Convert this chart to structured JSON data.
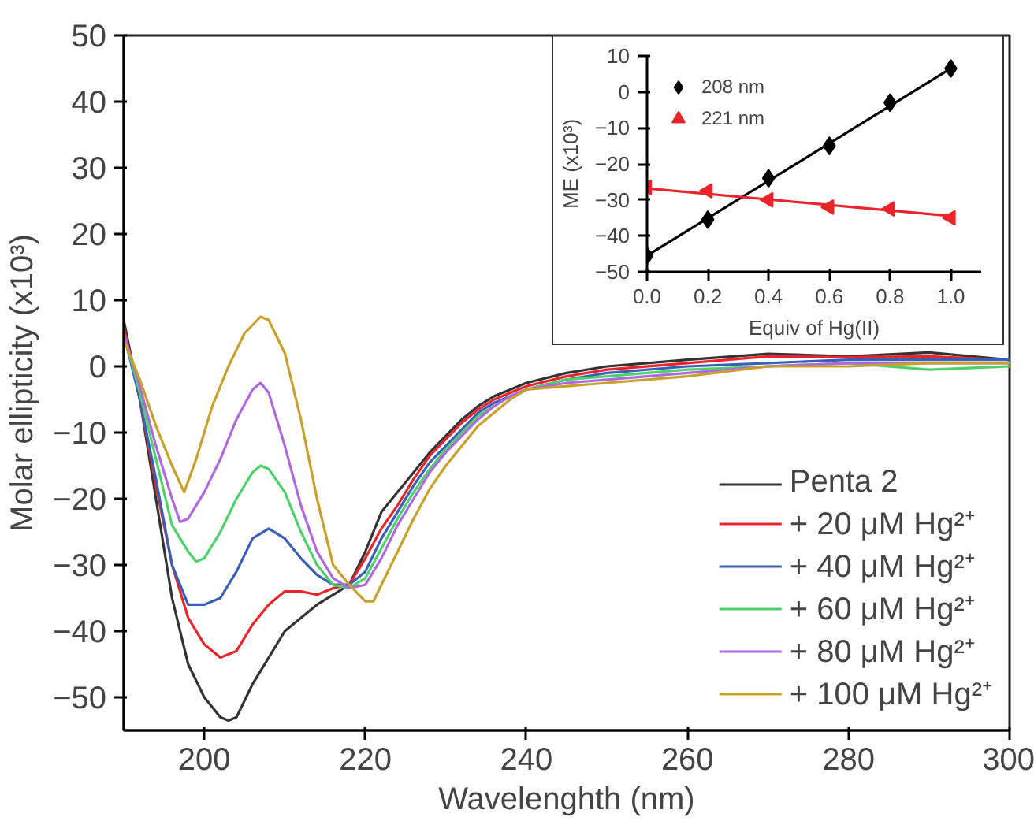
{
  "chart_data": [
    {
      "type": "line",
      "xlabel": "Wavelenghth (nm)",
      "ylabel": "Molar ellipticity (x10³)",
      "xlim": [
        190,
        300
      ],
      "ylim": [
        -55,
        50
      ],
      "xticks": [
        200,
        220,
        240,
        260,
        280,
        300
      ],
      "yticks": [
        -50,
        -40,
        -30,
        -20,
        -10,
        0,
        10,
        20,
        30,
        40,
        50
      ],
      "grid": false,
      "legend": "bottom right",
      "line_style": "solid",
      "marker": "none",
      "series": [
        {
          "name": "Penta 2",
          "color": "#333333",
          "x": [
            190,
            192,
            194,
            196,
            198,
            200,
            202,
            203,
            204,
            206,
            208,
            210,
            212,
            214,
            216,
            218,
            220,
            222,
            224,
            226,
            228,
            230,
            232,
            234,
            236,
            238,
            240,
            245,
            250,
            255,
            260,
            270,
            280,
            290,
            300
          ],
          "values": [
            7,
            -5,
            -20,
            -35,
            -45,
            -50,
            -53,
            -53.5,
            -53,
            -48,
            -44,
            -40,
            -38,
            -36,
            -34.5,
            -33,
            -28,
            -22,
            -19,
            -16,
            -13,
            -10.5,
            -8,
            -6,
            -4.5,
            -3.5,
            -2.5,
            -1,
            0,
            0.5,
            1,
            1.9,
            1.5,
            2.1,
            1
          ]
        },
        {
          "name": "+ 20 μM Hg²⁺",
          "color": "#e8252a",
          "x": [
            190,
            192,
            194,
            196,
            198,
            200,
            202,
            204,
            206,
            208,
            210,
            212,
            214,
            216,
            218,
            220,
            222,
            224,
            226,
            228,
            230,
            232,
            234,
            236,
            238,
            240,
            245,
            250,
            260,
            270,
            280,
            290,
            300
          ],
          "values": [
            6,
            -5,
            -18,
            -30,
            -38,
            -42,
            -44,
            -43,
            -39,
            -36,
            -34,
            -34,
            -34.5,
            -33.5,
            -33,
            -29,
            -24.5,
            -21,
            -17,
            -13.5,
            -11,
            -8.5,
            -6.5,
            -5,
            -4,
            -3,
            -1.5,
            -0.5,
            0.5,
            1.5,
            1.4,
            1.5,
            1
          ]
        },
        {
          "name": "+ 40 μM Hg²⁺",
          "color": "#3a5fb8",
          "x": [
            190,
            192,
            194,
            196,
            198,
            200,
            202,
            204,
            206,
            208,
            210,
            212,
            214,
            216,
            218,
            220,
            222,
            224,
            226,
            228,
            230,
            232,
            234,
            236,
            238,
            240,
            245,
            250,
            260,
            270,
            280,
            290,
            300
          ],
          "values": [
            5,
            -5,
            -17,
            -30,
            -36,
            -36,
            -35,
            -31,
            -26,
            -24.5,
            -26,
            -29,
            -31.5,
            -33,
            -33,
            -31,
            -26,
            -22,
            -18,
            -14.5,
            -12,
            -9.5,
            -7,
            -5.5,
            -4.5,
            -3.5,
            -2,
            -1,
            0,
            0.5,
            1,
            1,
            1
          ]
        },
        {
          "name": "+ 60 μM Hg²⁺",
          "color": "#4fd16a",
          "x": [
            190,
            192,
            194,
            196,
            198,
            199,
            200,
            202,
            204,
            206,
            207,
            208,
            210,
            212,
            214,
            216,
            218,
            220,
            222,
            224,
            226,
            228,
            230,
            232,
            234,
            236,
            238,
            240,
            245,
            250,
            260,
            270,
            280,
            290,
            300
          ],
          "values": [
            5,
            -4,
            -14,
            -24,
            -28,
            -29.5,
            -29,
            -25,
            -20,
            -16,
            -15,
            -15.5,
            -19,
            -25,
            -30,
            -33,
            -33.5,
            -32,
            -27.5,
            -23,
            -19,
            -15.5,
            -12.5,
            -10,
            -7.5,
            -6,
            -4.5,
            -3.5,
            -2,
            -1.5,
            -0.5,
            0,
            0.5,
            -0.5,
            0
          ]
        },
        {
          "name": "+ 80 μM Hg²⁺",
          "color": "#b068e0",
          "x": [
            190,
            192,
            194,
            196,
            197,
            198,
            200,
            202,
            204,
            206,
            207,
            208,
            210,
            212,
            214,
            216,
            218,
            220,
            222,
            224,
            226,
            228,
            230,
            232,
            234,
            236,
            238,
            240,
            245,
            250,
            260,
            270,
            280,
            290,
            300
          ],
          "values": [
            5,
            -3,
            -12,
            -20,
            -23.5,
            -23,
            -19,
            -14,
            -8,
            -3.5,
            -2.5,
            -4,
            -12,
            -21,
            -28,
            -32,
            -33.5,
            -33,
            -29,
            -24,
            -20,
            -16,
            -13,
            -10.5,
            -8,
            -6,
            -4.5,
            -3.5,
            -2.5,
            -2,
            -1,
            0,
            0.5,
            0.5,
            0.5
          ]
        },
        {
          "name": "+ 100 μM Hg²⁺",
          "color": "#c9a02a",
          "x": [
            190,
            192,
            194,
            196,
            197.5,
            199,
            201,
            203,
            205,
            207,
            208,
            210,
            212,
            214,
            216,
            218,
            220,
            221,
            222,
            224,
            226,
            228,
            230,
            232,
            234,
            236,
            238,
            240,
            245,
            250,
            260,
            270,
            280,
            290,
            300
          ],
          "values": [
            4,
            -2,
            -9,
            -15,
            -19,
            -14,
            -6,
            0,
            5,
            7.5,
            7,
            2,
            -8,
            -20,
            -30,
            -33,
            -35.5,
            -35.5,
            -33,
            -28,
            -23,
            -18.5,
            -15,
            -12,
            -9,
            -7,
            -5,
            -3.5,
            -3,
            -2.5,
            -1.5,
            0,
            0,
            0.5,
            0.5
          ]
        }
      ]
    },
    {
      "type": "scatter",
      "xlabel": "Equiv of Hg(II)",
      "ylabel": "ME (x10³)",
      "xlim": [
        0,
        1.1
      ],
      "ylim": [
        -50,
        10
      ],
      "xticks": [
        {
          "value": 0,
          "label": "0.0"
        },
        0.2,
        0.4,
        0.6,
        0.8,
        {
          "value": 1,
          "label": "1.0"
        }
      ],
      "yticks": [
        -50,
        -40,
        -30,
        -20,
        -10,
        0,
        10
      ],
      "grid": false,
      "legend": "top left",
      "series": [
        {
          "name": "208 nm",
          "color": "#000000",
          "marker": "diamond",
          "x": [
            0,
            0.2,
            0.4,
            0.6,
            0.8,
            1
          ],
          "values": [
            -45.5,
            -35.5,
            -24,
            -15,
            -3,
            6.5
          ]
        },
        {
          "name": "221 nm",
          "color": "#e8252a",
          "marker": "triangle",
          "x": [
            0,
            0.2,
            0.4,
            0.6,
            0.8,
            1
          ],
          "values": [
            -26.5,
            -27.5,
            -30,
            -32,
            -32.5,
            -35
          ]
        },
        {
          "type": "line",
          "color": "#000000",
          "x": [
            0,
            1
          ],
          "values": [
            -45.5,
            6.5
          ]
        },
        {
          "type": "line",
          "color": "#e8252a",
          "x": [
            0,
            1
          ],
          "values": [
            -26.8,
            -34.5
          ]
        }
      ]
    }
  ]
}
